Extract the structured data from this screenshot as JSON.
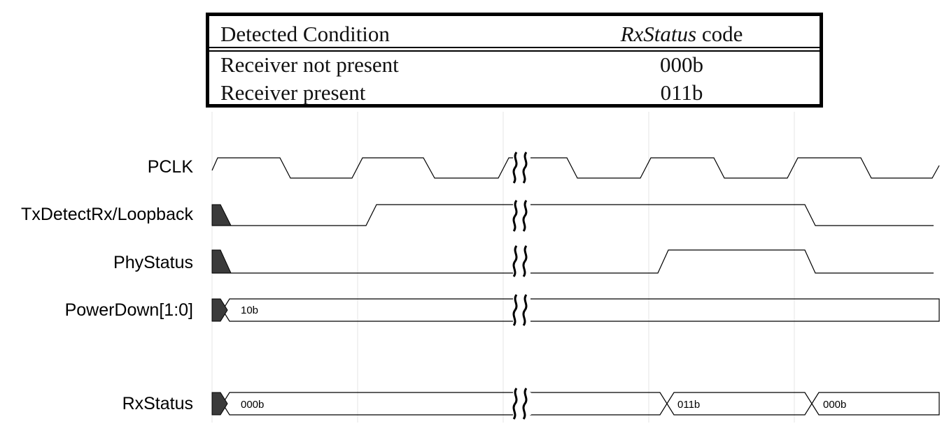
{
  "table": {
    "header": {
      "condition": "Detected Condition",
      "code_italic": "RxStatus",
      "code_suffix": " code"
    },
    "rows": [
      {
        "condition": "Receiver not present",
        "code": "000b"
      },
      {
        "condition": "Receiver present",
        "code": "011b"
      }
    ]
  },
  "signals": {
    "pclk": "PCLK",
    "txdetect": "TxDetectRx/Loopback",
    "phystatus": "PhyStatus",
    "powerdown": "PowerDown[1:0]",
    "rxstatus": "RxStatus"
  },
  "bus_values": {
    "powerdown_value": "10b",
    "rxstatus_initial": "000b",
    "rxstatus_detected": "011b",
    "rxstatus_final": "000b"
  }
}
